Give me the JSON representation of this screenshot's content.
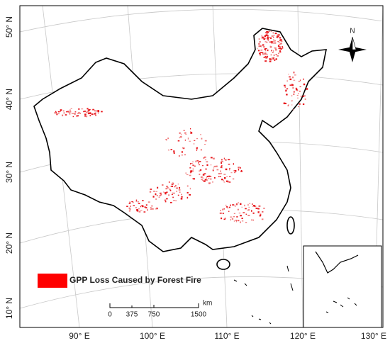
{
  "map": {
    "lat_labels": [
      "50° N",
      "40° N",
      "30° N",
      "20° N",
      "10° N"
    ],
    "lon_labels": [
      "90° E",
      "100° E",
      "110° E",
      "120° E",
      "130° E"
    ],
    "legend": {
      "label": "GPP Loss Caused by Forest Fire"
    },
    "scale_bar": {
      "labels": [
        "0",
        "375",
        "750",
        "1500"
      ],
      "unit": "km"
    },
    "north_arrow": "N"
  }
}
